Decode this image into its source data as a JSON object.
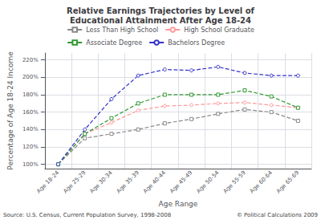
{
  "chart_data": {
    "type": "line",
    "title": "Relative Earnings Trajectories by Level of\nEducational Attainment After Age 18-24",
    "x_label": "Age Range",
    "y_label": "Percentage of Age 18-24 Income",
    "annotations": [
      "Source: U.S. Census, Current Population Survey, 1998-2008",
      "© Political Calculations 2009"
    ],
    "categories": [
      "Age 18-24",
      "Age 25-29",
      "Age 30-34",
      "Age 35-39",
      "Age 40-44",
      "Age 45-49",
      "Age 50-54",
      "Age 55-59",
      "Age 60-64",
      "Age 65-69"
    ],
    "series": [
      {
        "name": "Less Than High School",
        "color": "#888888",
        "marker": "square",
        "values": [
          100,
          130,
          135,
          140,
          147,
          152,
          158,
          163,
          160,
          150
        ]
      },
      {
        "name": "High School Graduate",
        "color": "#ff9999",
        "marker": "circle",
        "values": [
          100,
          135,
          148,
          162,
          167,
          168,
          170,
          171,
          168,
          165
        ]
      },
      {
        "name": "Associate Degree",
        "color": "#339933",
        "marker": "square",
        "values": [
          100,
          135,
          153,
          170,
          180,
          180,
          180,
          185,
          178,
          165
        ]
      },
      {
        "name": "Bachelors Degree",
        "color": "#3333cc",
        "marker": "circle",
        "values": [
          100,
          140,
          175,
          202,
          209,
          208,
          212,
          205,
          202,
          202
        ]
      }
    ],
    "line_style": "dashed",
    "ylim": [
      95,
      228
    ],
    "yticks": [
      {
        "value": 100,
        "label": "100%"
      },
      {
        "value": 120,
        "label": "120%"
      },
      {
        "value": 140,
        "label": "140%"
      },
      {
        "value": 160,
        "label": "160%"
      },
      {
        "value": 180,
        "label": "180%"
      },
      {
        "value": 200,
        "label": "200%"
      },
      {
        "value": 220,
        "label": "220%"
      }
    ],
    "grid": true,
    "legend": "top"
  }
}
